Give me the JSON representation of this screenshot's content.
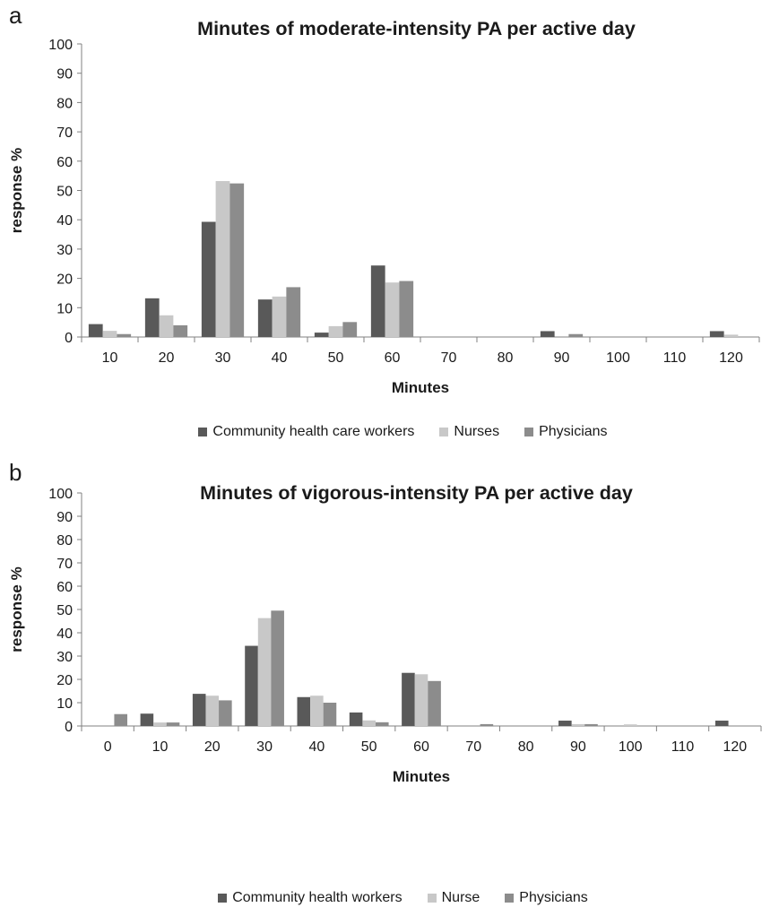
{
  "chart_data": [
    {
      "panel_label": "a",
      "type": "bar",
      "title": "Minutes of moderate-intensity PA per active day",
      "xlabel": "Minutes",
      "ylabel": "response %",
      "ylim": [
        0,
        100
      ],
      "yticks": [
        0,
        10,
        20,
        30,
        40,
        50,
        60,
        70,
        80,
        90,
        100
      ],
      "categories": [
        "10",
        "20",
        "30",
        "40",
        "50",
        "60",
        "70",
        "80",
        "90",
        "100",
        "110",
        "120"
      ],
      "series": [
        {
          "name": "Community health care workers",
          "color": "#595959",
          "values": [
            4.4,
            13.2,
            39.3,
            12.8,
            1.5,
            24.4,
            0,
            0,
            2.0,
            0,
            0,
            2.0
          ]
        },
        {
          "name": "Nurses",
          "color": "#c8c8c8",
          "values": [
            2.1,
            7.4,
            53.2,
            13.8,
            3.7,
            18.6,
            0,
            0,
            0,
            0,
            0,
            0.8
          ]
        },
        {
          "name": "Physicians",
          "color": "#8c8c8c",
          "values": [
            1.0,
            4.0,
            52.4,
            17.0,
            5.1,
            19.1,
            0,
            0,
            1.0,
            0,
            0,
            0
          ]
        }
      ],
      "legend_position": "bottom",
      "grid": false
    },
    {
      "panel_label": "b",
      "type": "bar",
      "title": "Minutes of vigorous-intensity PA per active day",
      "xlabel": "Minutes",
      "ylabel": "response %",
      "ylim": [
        0,
        100
      ],
      "yticks": [
        0,
        10,
        20,
        30,
        40,
        50,
        60,
        70,
        80,
        90,
        100
      ],
      "categories": [
        "0",
        "10",
        "20",
        "30",
        "40",
        "50",
        "60",
        "70",
        "80",
        "90",
        "100",
        "110",
        "120"
      ],
      "series": [
        {
          "name": "Community health workers",
          "color": "#595959",
          "values": [
            0,
            5.3,
            13.8,
            34.4,
            12.4,
            5.8,
            22.8,
            0,
            0,
            2.3,
            0,
            0,
            2.3
          ]
        },
        {
          "name": "Nurse",
          "color": "#c8c8c8",
          "values": [
            0,
            1.5,
            13.0,
            46.3,
            13.0,
            2.4,
            22.2,
            0,
            0,
            0.8,
            0.7,
            0,
            0
          ]
        },
        {
          "name": "Physicians",
          "color": "#8c8c8c",
          "values": [
            5.1,
            1.5,
            11.0,
            49.5,
            10.0,
            1.6,
            19.3,
            0.8,
            0,
            0.8,
            0,
            0,
            0
          ]
        }
      ],
      "legend_position": "bottom",
      "grid": false
    }
  ]
}
